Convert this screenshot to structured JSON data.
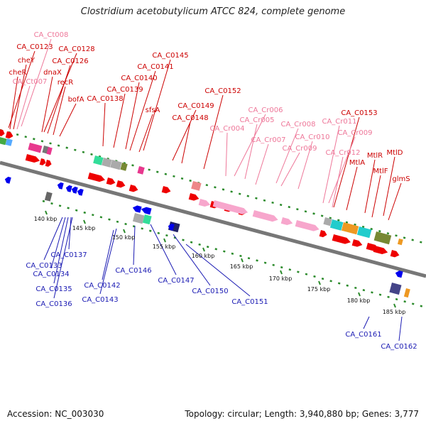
{
  "title": "Clostridium acetobutylicum ATCC 824, complete genome",
  "footer": {
    "accession": "Accession: NC_003030",
    "topology": "Topology: circular; Length: 3,940,880 bp; Genes: 3,777"
  },
  "colors": {
    "forward_label": "#cc0000",
    "rna_label": "#ee7799",
    "reverse_label": "#1a1ab3",
    "forward_arrow": "#ee0000",
    "rna_arrow": "#f7a6cc",
    "reverse_arrow": "#0000ee"
  },
  "ruler_ticks": [
    "140 kbp",
    "145 kbp",
    "150 kbp",
    "155 kbp",
    "160 kbp",
    "165 kbp",
    "170 kbp",
    "175 kbp",
    "180 kbp",
    "185 kbp"
  ],
  "labels_top": [
    "CA_Ct008",
    "CA_C0123",
    "CA_C0128",
    "cheY",
    "CA_C0126",
    "cheR",
    "dnaX",
    "CA_Ct007",
    "recR",
    "bofA",
    "CA_C0145",
    "CA_C0141",
    "CA_C0140",
    "CA_C0139",
    "CA_C0138",
    "sfsA",
    "CA_C0149",
    "CA_C0148",
    "CA_C0152",
    "CA_Cr006",
    "CA_Cr005",
    "CA_Cr004",
    "CA_Cr008",
    "CA_Cr007",
    "CA_Cr010",
    "CA_Cr009",
    "CA_Cr011",
    "CA_C0153",
    "CA_Cr009",
    "CA_Cr012",
    "MtlD",
    "MtlR",
    "MtlA",
    "MtlF",
    "glmS"
  ],
  "labels_bottom": [
    "CA_C0137",
    "CA_C0133",
    "CA_C0134",
    "CA_C0135",
    "CA_C0136",
    "CA_C0142",
    "CA_C0143",
    "CA_C0146",
    "CA_C0147",
    "CA_C0150",
    "CA_C0151",
    "CA_C0161",
    "CA_C0162"
  ]
}
